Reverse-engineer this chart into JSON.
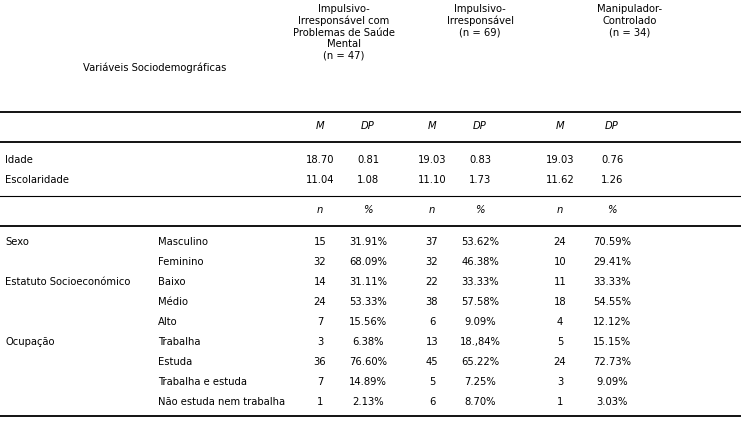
{
  "header_col1": "Variáveis Sociodemográficas",
  "header_grp1": "Impulsivo-\nIrresponsável com\nProblemas de Saúde\nMental\n(n = 47)",
  "header_grp2": "Impulsivo-\nIrresponsável\n(n = 69)",
  "header_grp3": "Manipulador-\nControlado\n(n = 34)",
  "rows_continuous": [
    [
      "Idade",
      "18.70",
      "0.81",
      "19.03",
      "0.83",
      "19.03",
      "0.76"
    ],
    [
      "Escolaridade",
      "11.04",
      "1.08",
      "11.10",
      "1.73",
      "11.62",
      "1.26"
    ]
  ],
  "rows_categorical": [
    [
      "Sexo",
      "Masculino",
      "15",
      "31.91%",
      "37",
      "53.62%",
      "24",
      "70.59%"
    ],
    [
      "",
      "Feminino",
      "32",
      "68.09%",
      "32",
      "46.38%",
      "10",
      "29.41%"
    ],
    [
      "Estatuto Socioeconómico",
      "Baixo",
      "14",
      "31.11%",
      "22",
      "33.33%",
      "11",
      "33.33%"
    ],
    [
      "",
      "Médio",
      "24",
      "53.33%",
      "38",
      "57.58%",
      "18",
      "54.55%"
    ],
    [
      "",
      "Alto",
      "7",
      "15.56%",
      "6",
      "9.09%",
      "4",
      "12.12%"
    ],
    [
      "Ocupação",
      "Trabalha",
      "3",
      "6.38%",
      "13",
      "18.,84%",
      "5",
      "15.15%"
    ],
    [
      "",
      "Estuda",
      "36",
      "76.60%",
      "45",
      "65.22%",
      "24",
      "72.73%"
    ],
    [
      "",
      "Trabalha e estuda",
      "7",
      "14.89%",
      "5",
      "7.25%",
      "3",
      "9.09%"
    ],
    [
      "",
      "Não estuda nem trabalha",
      "1",
      "2.13%",
      "6",
      "8.70%",
      "1",
      "3.03%"
    ]
  ],
  "bg_color": "#ffffff",
  "text_color": "#000000",
  "font_size": 7.2
}
